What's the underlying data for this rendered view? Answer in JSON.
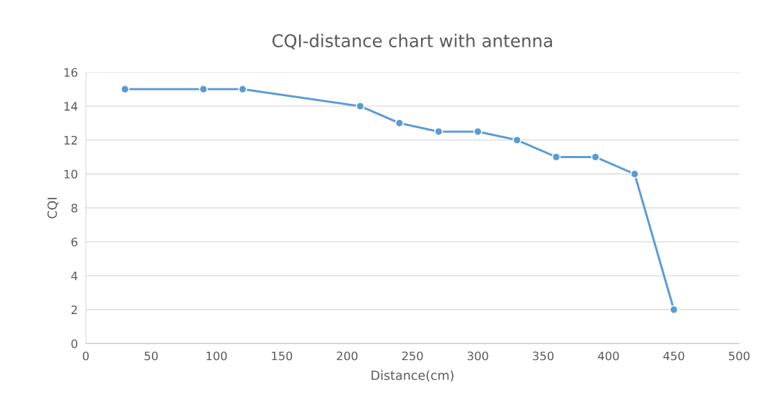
{
  "chart_data": {
    "type": "line",
    "title": "CQI-distance chart with antenna",
    "xlabel": "Distance(cm)",
    "ylabel": "CQI",
    "x": [
      30,
      90,
      120,
      210,
      240,
      270,
      300,
      330,
      360,
      390,
      420,
      450
    ],
    "series": [
      {
        "color": "#5b9bd5",
        "values": [
          15,
          15,
          15,
          14,
          13,
          12.5,
          12.5,
          12,
          11,
          11,
          10,
          2
        ]
      }
    ],
    "xlim": [
      0,
      500
    ],
    "xticks": [
      0,
      50,
      100,
      150,
      200,
      250,
      300,
      350,
      400,
      450,
      500
    ],
    "ylim": [
      0,
      16
    ],
    "yticks": [
      0,
      2,
      4,
      6,
      8,
      10,
      12,
      14,
      16
    ],
    "grid": "y",
    "legend": false,
    "marker": "circle",
    "line_style": "solid"
  }
}
